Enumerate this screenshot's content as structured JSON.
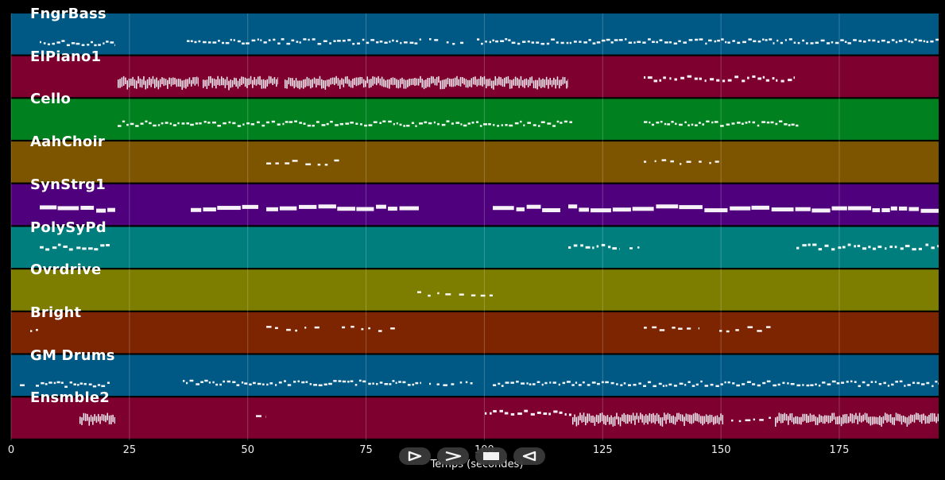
{
  "tracks": [
    {
      "name": "FngrBass",
      "color": "#005885"
    },
    {
      "name": "ElPiano1",
      "color": "#7d002e"
    },
    {
      "name": "Cello",
      "color": "#00801f"
    },
    {
      "name": "AahChoir",
      "color": "#7d5500"
    },
    {
      "name": "SynStrg1",
      "color": "#4f007d"
    },
    {
      "name": "PolySyPd",
      "color": "#007d7d"
    },
    {
      "name": "Ovrdrive",
      "color": "#7d7d00"
    },
    {
      "name": "Bright",
      "color": "#7d2500"
    },
    {
      "name": "GM Drums",
      "color": "#005885"
    },
    {
      "name": "Ensmble2",
      "color": "#7d002e"
    }
  ],
  "xaxis": {
    "label": "Temps (secondes)",
    "ticks": [
      "0",
      "25",
      "50",
      "75",
      "100",
      "125",
      "150",
      "175"
    ],
    "range": [
      0,
      196
    ]
  },
  "controls": [
    {
      "name": "play-icon"
    },
    {
      "name": "fast-forward-icon"
    },
    {
      "name": "stop-icon"
    },
    {
      "name": "rewind-icon"
    }
  ]
}
